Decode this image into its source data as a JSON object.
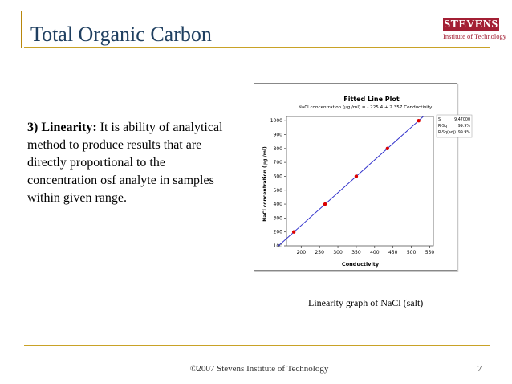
{
  "slide": {
    "title": "Total Organic Carbon",
    "logo_name": "STEVENS",
    "logo_sub": "Institute of Technology",
    "lead": "3) Linearity:",
    "body": " It is ability of analytical method to produce results that are directly proportional to the concentration osf analyte in samples within given range.",
    "caption": "Linearity graph of NaCl (salt)",
    "footer": "©2007 Stevens Institute of Technology",
    "page": "7",
    "colors": {
      "title": "#1f3f60",
      "rule": "#c9a227",
      "brand": "#a31f34",
      "fit_line": "#3333cc",
      "points": "#dd0000"
    }
  },
  "chart_data": {
    "type": "scatter",
    "title": "Fitted Line Plot",
    "subtitle": "NaCl   concentration (µg /ml) =  - 225.4 + 2.357 Conductivity",
    "xlabel": "Conductivity",
    "ylabel": "NaCl   concentration (µg /ml)",
    "xlim": [
      160,
      560
    ],
    "ylim": [
      100,
      1030
    ],
    "x_ticks": [
      200,
      250,
      300,
      350,
      400,
      450,
      500,
      550
    ],
    "y_ticks": [
      100,
      200,
      300,
      400,
      500,
      600,
      700,
      800,
      900,
      1000
    ],
    "points": [
      {
        "x": 180,
        "y": 200
      },
      {
        "x": 265,
        "y": 400
      },
      {
        "x": 350,
        "y": 600
      },
      {
        "x": 435,
        "y": 800
      },
      {
        "x": 520,
        "y": 1000
      }
    ],
    "fit": {
      "intercept": -225.4,
      "slope": 2.357
    },
    "stats": [
      {
        "label": "S",
        "value": "9.47000"
      },
      {
        "label": "R-Sq",
        "value": "99.9%"
      },
      {
        "label": "R-Sq(adj)",
        "value": "99.9%"
      }
    ]
  }
}
